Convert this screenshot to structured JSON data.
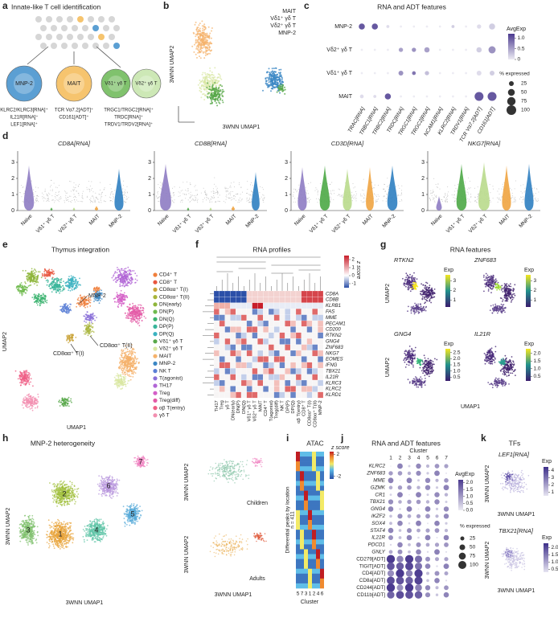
{
  "panels": {
    "a": {
      "letter": "a",
      "title": "Innate-like T cell identification",
      "cells": [
        "MNP-2",
        "MAIT",
        "Vδ1⁺ γδ T",
        "Vδ2⁺ γδ T"
      ],
      "cell_colors": [
        "#5b9fd3",
        "#f6c46e",
        "#80c26d",
        "#cde8b6"
      ],
      "markers_mnp2": [
        "KLRC2/KLRC3[RNA]⁺",
        "IL21R[RNA]⁺",
        "LEF1[RNA]⁺"
      ],
      "markers_mait": [
        "TCR Vα7.2[ADT]⁺",
        "CD161[ADT]⁺"
      ],
      "markers_gd": [
        "TRGC1/TRGC2[RNA]⁺",
        "TRDC[RNA]⁺",
        "TRDV1/TRDV2[RNA]⁺"
      ]
    },
    "b": {
      "letter": "b",
      "legend": [
        "MAIT",
        "Vδ1⁺ γδ T",
        "Vδ2⁺ γδ T",
        "MNP-2"
      ],
      "colors": [
        "#f5b26b",
        "#58a84a",
        "#d9e7a3",
        "#3b87c4"
      ],
      "xlabel": "3WNN UMAP1",
      "ylabel": "3WNN UMAP2"
    },
    "c": {
      "letter": "c",
      "title": "RNA and ADT features",
      "rows": [
        "MNP-2",
        "Vδ2⁺ γδ T",
        "Vδ1⁺ γδ T",
        "MAIT"
      ],
      "row_colors": [
        "#3b87c4",
        "#d9e7a3",
        "#58a84a",
        "#f5b26b"
      ],
      "cols": [
        "TRAC[RNA]",
        "TRBC1[RNA]",
        "TRBC2[RNA]",
        "TRDC[RNA]",
        "TRGC1[RNA]",
        "TRGC2[RNA]",
        "NCAM1[RNA]",
        "KLRC2[RNA]",
        "TRDV1[RNA]",
        "TCR Vα7.2[ADT]",
        "CD161[ADT]"
      ],
      "pct": [
        [
          40,
          40,
          10,
          5,
          5,
          5,
          5,
          10,
          5,
          20,
          40
        ],
        [
          5,
          5,
          5,
          20,
          20,
          30,
          5,
          5,
          5,
          30,
          55
        ],
        [
          5,
          5,
          5,
          25,
          15,
          20,
          5,
          5,
          5,
          25,
          25
        ],
        [
          15,
          10,
          40,
          5,
          5,
          5,
          5,
          5,
          5,
          85,
          85
        ]
      ],
      "avg": [
        [
          1.0,
          1.0,
          0.1,
          0.0,
          0.0,
          0.0,
          0.0,
          0.2,
          0.0,
          0.1,
          0.2
        ],
        [
          0.0,
          0.0,
          0.0,
          0.5,
          0.6,
          0.5,
          0.0,
          0.0,
          0.0,
          0.2,
          0.6
        ],
        [
          0.0,
          0.0,
          0.0,
          0.6,
          0.8,
          0.3,
          0.0,
          0.0,
          0.0,
          0.1,
          0.2
        ],
        [
          0.1,
          0.1,
          1.0,
          0.0,
          0.0,
          0.0,
          0.0,
          0.0,
          0.0,
          1.0,
          1.0
        ]
      ],
      "legend_title": "AvgExp",
      "legend_ticks": [
        {
          "value": 1,
          "label": "1.0"
        },
        0.5,
        0
      ],
      "legend_lim": [
        0,
        1.2
      ],
      "size_title": "% expressed",
      "sizes": [
        25,
        50,
        75,
        100
      ]
    },
    "d": {
      "letter": "d",
      "titles": [
        "CD8A[RNA]",
        "CD8B[RNA]",
        "CD3D[RNA]",
        "NKG7[RNA]"
      ],
      "yticks": [
        0,
        1,
        2,
        3
      ],
      "ylim": [
        0,
        3.5
      ],
      "groups": [
        "Naive",
        "Vδ1⁺ γδ T",
        "Vδ2⁺ γδ T",
        "MAIT",
        "MNP-2"
      ],
      "group_colors": [
        "#8e7cc3",
        "#4da846",
        "#b9da8c",
        "#f0a441",
        "#2f7fc1"
      ]
    },
    "e": {
      "letter": "e",
      "title": "Thymus integration",
      "legend": [
        "CD4⁺ T",
        "CD8⁺ T",
        "CD8αα⁺ T(I)",
        "CD8αα⁺ T(II)",
        "DN(early)",
        "DN(P)",
        "DN(Q)",
        "DP(P)",
        "DP(Q)",
        "Vδ1⁺ γδ T",
        "Vδ2⁺ γδ T",
        "MAIT",
        "MNP-2",
        "NK T",
        "T(agonist)",
        "TH17",
        "Treg",
        "Treg(diff)",
        "αβ T(entry)",
        "γδ T"
      ],
      "colors": [
        "#f07f3c",
        "#e8563f",
        "#c9a43a",
        "#a8b43a",
        "#8fb63c",
        "#6fba4e",
        "#3bb36f",
        "#38b59a",
        "#3bb2c0",
        "#58a84a",
        "#d9e7a3",
        "#f5b26b",
        "#3b87c4",
        "#5b7fd6",
        "#8a6fd8",
        "#b166d6",
        "#d45fc7",
        "#e35aa6",
        "#ef5f86",
        "#f28fb0"
      ],
      "annotations": [
        "MNP-2",
        "CD8αα⁺ T(II)",
        "CD8αα⁺ T(I)"
      ],
      "xlabel": "UMAP1",
      "ylabel": "UMAP2"
    },
    "f": {
      "letter": "f",
      "title": "RNA profiles",
      "genes": [
        "CD8A",
        "CD8B",
        "KLRB1",
        "FAS",
        "MME",
        "PECAM1",
        "CD200",
        "RTKN2",
        "GNG4",
        "ZNF683",
        "NKG7",
        "EOMES",
        "IFNG",
        "TBX21",
        "IL21R",
        "KLRC3",
        "KLRC2",
        "KLRD1"
      ],
      "cols": [
        "TH17",
        "Treg",
        "γδ T",
        "DN(early)",
        "DN(P)",
        "DN(Q)",
        "Vδ1⁺ γδ T",
        "Vδ2⁺ γδ T",
        "MAIT",
        "CD4⁺ T",
        "T(agonist)",
        "Treg(diff)",
        "NK T",
        "DP(P)",
        "DP(Q)",
        "αβ T(entry)",
        "CD8⁺ T",
        "CD8αα⁺ T(I)",
        "CD8αα⁺ T(II)",
        "MNP-2"
      ],
      "legend_title": "z score",
      "legend_ticks": [
        2,
        1,
        0,
        -1
      ],
      "legend_lim": [
        -1.5,
        2.5
      ]
    },
    "g": {
      "letter": "g",
      "title": "RNA features",
      "maps": [
        {
          "gene": "RTKN2",
          "ticks": [
            3,
            2,
            1
          ],
          "lim": [
            0.3,
            3.6
          ]
        },
        {
          "gene": "ZNF683",
          "ticks": [
            3,
            2,
            1
          ],
          "lim": [
            0.3,
            3.6
          ]
        },
        {
          "gene": "GNG4",
          "ticks": [
            {
              "value": 2.5,
              "label": "2.5"
            },
            {
              "value": 2,
              "label": "2.0"
            },
            {
              "value": 1.5,
              "label": "1.5"
            },
            {
              "value": 1,
              "label": "1.0"
            },
            {
              "value": 0.5,
              "label": "0.5"
            }
          ],
          "lim": [
            0.2,
            2.8
          ]
        },
        {
          "gene": "IL21R",
          "ticks": [
            {
              "value": 2,
              "label": "2.0"
            },
            {
              "value": 1.5,
              "label": "1.5"
            },
            {
              "value": 1,
              "label": "1.0"
            },
            {
              "value": 0.5,
              "label": "0.5"
            }
          ],
          "lim": [
            0.2,
            2.3
          ]
        }
      ],
      "legend_title": "Exp",
      "xlabel": "UMAP1",
      "ylabel": "UMAP2"
    },
    "h": {
      "letter": "h",
      "title": "MNP-2 heterogeneity",
      "clusters": [
        "1",
        "2",
        "3",
        "4",
        "5",
        "6",
        "7"
      ],
      "colors": [
        "#e8a43a",
        "#9fbf3b",
        "#7fc16c",
        "#5ec4a7",
        "#56a9d8",
        "#b895dd",
        "#ef7fbf"
      ],
      "children": "Children",
      "adults": "Adults",
      "xlabel": "3WNN UMAP1",
      "ylabel": "3WNN UMAP2"
    },
    "i": {
      "letter": "i",
      "title": "ATAC",
      "ylabel": "Differential peaks by location",
      "n": "n = 411",
      "clusters": [
        "5",
        "7",
        "3",
        "1",
        "2",
        "4",
        "6"
      ],
      "xlabel": "Cluster",
      "legend_title": "z score",
      "legend_ticks": [
        2,
        -2
      ],
      "legend_lim": [
        -2.5,
        2.5
      ]
    },
    "j": {
      "letter": "j",
      "title": "RNA and ADT features",
      "cluster_title": "Cluster",
      "clusters": [
        "1",
        "2",
        "3",
        "4",
        "5",
        "6",
        "7"
      ],
      "features": [
        "KLRC2",
        "ZNF683",
        "MME",
        "GZMK",
        "CR1",
        "TBX21",
        "GNG4",
        "IKZF2",
        "SOX4",
        "STAT4",
        "IL21R",
        "PDCD1",
        "GNLY",
        "CD279[ADT]",
        "TIGIT[ADT]",
        "CD4[ADT]",
        "CD8a[ADT]",
        "CD244[ADT]",
        "CD11b[ADT]"
      ],
      "legend_title": "AvgExp",
      "legend_ticks": [
        {
          "value": 2,
          "label": "2.0"
        },
        {
          "value": 1.5,
          "label": "1.5"
        },
        {
          "value": 1,
          "label": "1.0"
        },
        {
          "value": 0.5,
          "label": "0.5"
        },
        {
          "value": 0,
          "label": "0.0"
        }
      ],
      "legend_lim": [
        0,
        2.2
      ],
      "size_title": "% expressed",
      "sizes": [
        25,
        50,
        75,
        100
      ]
    },
    "k": {
      "letter": "k",
      "title": "TFs",
      "maps": [
        {
          "gene": "LEF1[RNA]",
          "ticks": [
            4,
            3,
            2,
            1
          ],
          "lim": [
            0.5,
            4.5
          ]
        },
        {
          "gene": "TBX21[RNA]",
          "ticks": [
            {
              "value": 2,
              "label": "2.0"
            },
            {
              "value": 1.5,
              "label": "1.5"
            },
            {
              "value": 1,
              "label": "1.0"
            },
            {
              "value": 0.5,
              "label": "0.5"
            }
          ],
          "lim": [
            0.3,
            2.3
          ]
        }
      ],
      "legend_title": "Exp",
      "xlabel": "3WNN UMAP1",
      "ylabel": "3WNN UMAP2"
    }
  }
}
